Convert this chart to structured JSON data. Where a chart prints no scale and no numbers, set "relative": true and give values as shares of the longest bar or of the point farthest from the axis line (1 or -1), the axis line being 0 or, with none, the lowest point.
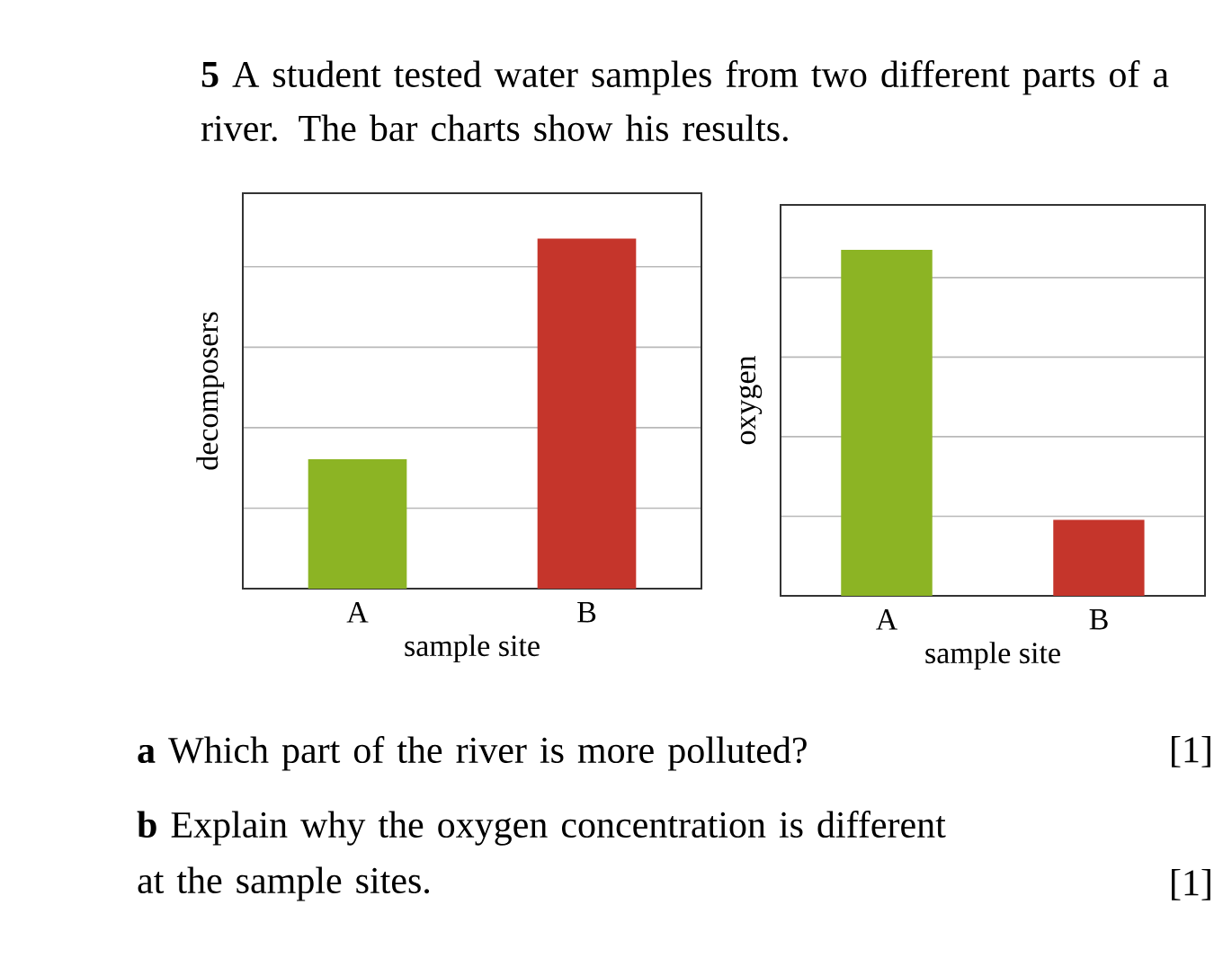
{
  "chart_data": [
    {
      "type": "bar",
      "title": "**5** A student tested water samples from two different parts of a river. The bar charts show his results.",
      "categories": [
        "A",
        "B"
      ],
      "values": [
        0.37,
        1
      ],
      "colors": [
        "#8cb424",
        "#c5352b"
      ],
      "xlabel": "sample site",
      "ylabel": "decomposers",
      "relative": true,
      "grid": "y"
    },
    {
      "type": "bar",
      "categories": [
        "A",
        "B"
      ],
      "values": [
        1,
        0.22
      ],
      "colors": [
        "#8cb424",
        "#c5352b"
      ],
      "xlabel": "sample site",
      "ylabel": "oxygen",
      "relative": true,
      "grid": "y",
      "annotations": [
        "**a** Which part of the river is more polluted?",
        "[1]",
        "**b** Explain why the oxygen concentration is different at the sample sites.",
        "[1]"
      ]
    }
  ]
}
